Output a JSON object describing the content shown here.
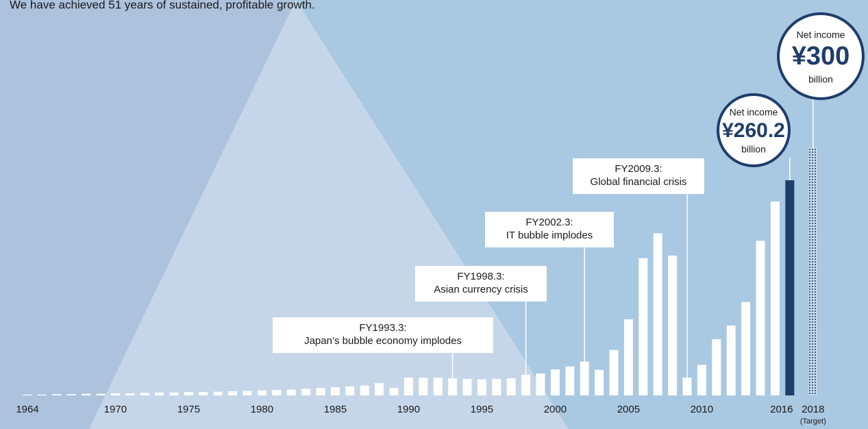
{
  "chart_data": {
    "type": "bar",
    "title": "We have achieved 51 years of sustained, profitable growth.",
    "categories": [
      "1964",
      null,
      null,
      null,
      null,
      null,
      "1970",
      null,
      null,
      null,
      null,
      "1975",
      null,
      null,
      null,
      null,
      "1980",
      null,
      null,
      null,
      null,
      "1985",
      null,
      null,
      null,
      null,
      "1990",
      null,
      null,
      null,
      null,
      "1995",
      null,
      null,
      null,
      null,
      "2000",
      null,
      null,
      null,
      null,
      "2005",
      null,
      null,
      null,
      null,
      "2010",
      null,
      null,
      null,
      null,
      null,
      "2016",
      "2018"
    ],
    "values": [
      1,
      1,
      1.5,
      1.5,
      2,
      2,
      2.5,
      2.5,
      3,
      3.5,
      3.5,
      4,
      4,
      4.5,
      5,
      5.5,
      6,
      6.5,
      7,
      8,
      9,
      10,
      11,
      12,
      15,
      9,
      21.5,
      21.5,
      21.5,
      20.7,
      20,
      19.5,
      20,
      20.7,
      25,
      26.5,
      31.5,
      35,
      41,
      31,
      55,
      92,
      166,
      196,
      169,
      21.5,
      37,
      68,
      84.5,
      113,
      187,
      234.5,
      260.2,
      300
    ],
    "value_labels": [
      null,
      null,
      null,
      null,
      null,
      null,
      null,
      null,
      null,
      null,
      null,
      null,
      null,
      null,
      null,
      null,
      null,
      null,
      null,
      null,
      null,
      null,
      null,
      null,
      null,
      null,
      null,
      null,
      null,
      null,
      null,
      null,
      null,
      null,
      null,
      null,
      null,
      null,
      null,
      null,
      null,
      null,
      null,
      null,
      null,
      null,
      null,
      null,
      null,
      null,
      null,
      null,
      "¥260.2",
      "¥300"
    ],
    "color": "#ffffff",
    "highlight_color": "#1f3d6b",
    "ylim": [
      0,
      260.2
    ],
    "value_caption": "Net income",
    "value_unit": "billion",
    "target_note": "(Target)",
    "annotations": [
      {
        "lines": [
          "FY1993.3:",
          "Japan’s bubble economy implodes"
        ]
      },
      {
        "lines": [
          "FY1998.3:",
          "Asian currency crisis"
        ]
      },
      {
        "lines": [
          "FY2002.3:",
          "IT bubble implodes"
        ]
      },
      {
        "lines": [
          "FY2009.3:",
          "Global financial crisis"
        ]
      }
    ]
  }
}
